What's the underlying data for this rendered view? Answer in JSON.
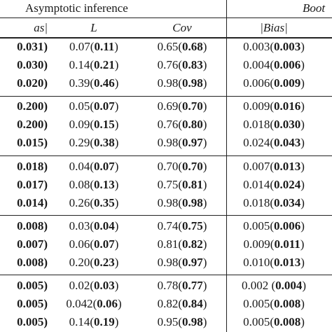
{
  "header": {
    "group_left": "Asymptotic inference",
    "group_right": "Boot",
    "columns": [
      "as|",
      "L",
      "Cov",
      "|Bias|"
    ]
  },
  "blocks": [
    [
      [
        "0.031)",
        "0.07",
        "0.11",
        "0.65",
        "0.68",
        "0.003",
        "0.003"
      ],
      [
        "0.030)",
        "0.14",
        "0.21",
        "0.76",
        "0.83",
        "0.004",
        "0.006"
      ],
      [
        "0.020)",
        "0.39",
        "0.46",
        "0.98",
        "0.98",
        "0.006",
        "0.009"
      ]
    ],
    [
      [
        "0.200)",
        "0.05",
        "0.07",
        "0.69",
        "0.70",
        "0.009",
        "0.016"
      ],
      [
        "0.200)",
        "0.09",
        "0.15",
        "0.76",
        "0.80",
        "0.018",
        "0.030"
      ],
      [
        "0.015)",
        "0.29",
        "0.38",
        "0.98",
        "0.97",
        "0.024",
        "0.043"
      ]
    ],
    [
      [
        "0.018)",
        "0.04",
        "0.07",
        "0.70",
        "0.70",
        "0.007",
        "0.013"
      ],
      [
        "0.017)",
        "0.08",
        "0.13",
        "0.75",
        "0.81",
        "0.014",
        "0.024"
      ],
      [
        "0.014)",
        "0.26",
        "0.35",
        "0.98",
        "0.98",
        "0.018",
        "0.034"
      ]
    ],
    [
      [
        "0.008)",
        "0.03",
        "0.04",
        "0.74",
        "0.75",
        "0.005",
        "0.006"
      ],
      [
        "0.007)",
        "0.06",
        "0.07",
        "0.81",
        "0.82",
        "0.009",
        "0.011"
      ],
      [
        "0.008)",
        "0.20",
        "0.23",
        "0.98",
        "0.97",
        "0.010",
        "0.013"
      ]
    ],
    [
      [
        "0.005)",
        "0.02",
        "0.03",
        "0.78",
        "0.77",
        "0.002 ",
        "0.004"
      ],
      [
        "0.005)",
        "0.042",
        "0.06",
        "0.82",
        "0.84",
        "0.005",
        "0.008"
      ],
      [
        "0.005)",
        "0.14",
        "0.19",
        "0.95",
        "0.98",
        "0.005",
        "0.008"
      ]
    ]
  ]
}
